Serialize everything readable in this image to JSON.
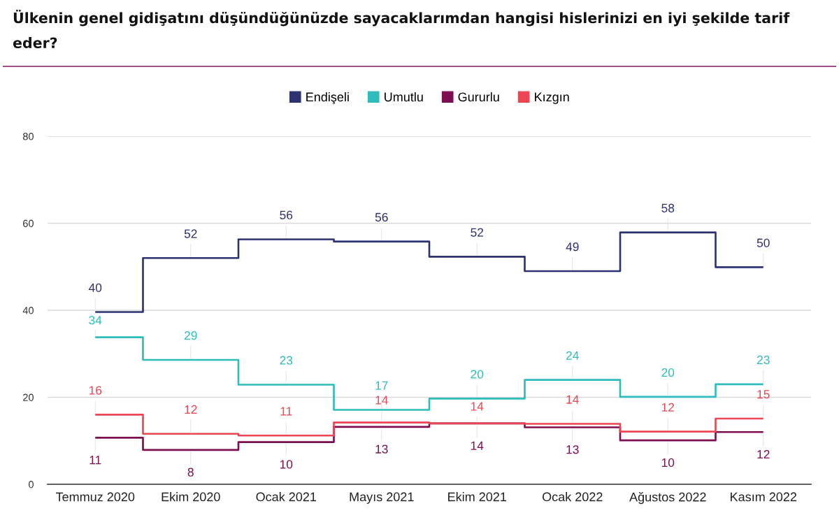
{
  "chart_data": {
    "type": "step",
    "title": "Ülkenin genel gidişatını düşündüğünüzde sayacaklarımdan hangisi hislerinizi en iyi şekilde tarif eder?",
    "categories": [
      "Temmuz 2020",
      "Ekim 2020",
      "Ocak 2021",
      "Mayıs 2021",
      "Ekim 2021",
      "Ocak 2022",
      "Ağustos 2022",
      "Kasım 2022"
    ],
    "series": [
      {
        "name": "Endişeli",
        "color": "#2d3271",
        "values": [
          39.6,
          52.0,
          56.3,
          55.8,
          52.3,
          49.0,
          57.9,
          49.9
        ],
        "value_labels": [
          "40",
          "52",
          "56",
          "56",
          "52",
          "49",
          "58",
          "50"
        ]
      },
      {
        "name": "Umutlu",
        "color": "#2ebcbc",
        "values": [
          33.8,
          28.6,
          22.9,
          17.1,
          19.7,
          24.0,
          20.1,
          23.0
        ],
        "value_labels": [
          "34",
          "29",
          "23",
          "17",
          "20",
          "24",
          "20",
          "23"
        ]
      },
      {
        "name": "Gururlu",
        "color": "#7b0f50",
        "values": [
          10.7,
          7.9,
          9.7,
          13.2,
          14.0,
          13.1,
          10.1,
          12.0
        ],
        "value_labels": [
          "11",
          "8",
          "10",
          "13",
          "14",
          "13",
          "10",
          "12"
        ]
      },
      {
        "name": "Kızgın",
        "color": "#ec4553",
        "values": [
          16.0,
          11.6,
          11.2,
          14.2,
          14.0,
          13.9,
          12.1,
          15.1
        ],
        "value_labels": [
          "16",
          "12",
          "11",
          "14",
          "14",
          "14",
          "12",
          "15"
        ]
      }
    ],
    "ylim": [
      0,
      80
    ],
    "yticks": [
      0,
      20,
      40,
      60,
      80
    ],
    "grid": "y",
    "legend": "top"
  }
}
